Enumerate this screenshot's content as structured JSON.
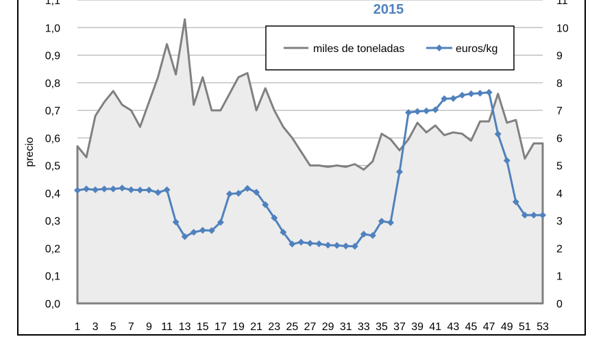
{
  "chart_data": {
    "type": "line",
    "title": "2015",
    "ylabel": "precio",
    "y2label": "",
    "xlabel": "",
    "ylim": [
      0,
      1.1
    ],
    "y2lim": [
      0,
      11
    ],
    "yticks": [
      "0,0",
      "0,1",
      "0,2",
      "0,3",
      "0,4",
      "0,5",
      "0,6",
      "0,7",
      "0,8",
      "0,9",
      "1,0",
      "1,1"
    ],
    "y2ticks": [
      "0",
      "1",
      "2",
      "3",
      "4",
      "5",
      "6",
      "7",
      "8",
      "9",
      "10",
      "11"
    ],
    "x": [
      1,
      2,
      3,
      4,
      5,
      6,
      7,
      8,
      9,
      10,
      11,
      12,
      13,
      14,
      15,
      16,
      17,
      18,
      19,
      20,
      21,
      22,
      23,
      24,
      25,
      26,
      27,
      28,
      29,
      30,
      31,
      32,
      33,
      34,
      35,
      36,
      37,
      38,
      39,
      40,
      41,
      42,
      43,
      44,
      45,
      46,
      47,
      48,
      49,
      50,
      51,
      52,
      53
    ],
    "xticks": [
      "1",
      "3",
      "5",
      "7",
      "9",
      "11",
      "13",
      "15",
      "17",
      "19",
      "21",
      "23",
      "25",
      "27",
      "29",
      "31",
      "33",
      "35",
      "37",
      "39",
      "41",
      "43",
      "45",
      "47",
      "49",
      "51",
      "53"
    ],
    "grid": "horizontal",
    "legend_position": "top-right",
    "series": [
      {
        "name": "miles de toneladas",
        "axis": "right",
        "style": "area",
        "color": "#808080",
        "fill": "#ececec",
        "values": [
          5.7,
          5.3,
          6.8,
          7.3,
          7.7,
          7.2,
          7.0,
          6.4,
          7.3,
          8.2,
          9.4,
          8.3,
          10.3,
          7.2,
          8.2,
          7.0,
          7.0,
          7.6,
          8.2,
          8.35,
          7.0,
          7.8,
          7.0,
          6.4,
          6.0,
          5.5,
          5.0,
          5.0,
          4.95,
          5.0,
          4.95,
          5.05,
          4.85,
          5.15,
          6.15,
          5.95,
          5.55,
          5.95,
          6.55,
          6.2,
          6.45,
          6.1,
          6.2,
          6.15,
          5.9,
          6.6,
          6.6,
          7.6,
          6.55,
          6.65,
          5.25,
          5.8,
          5.8
        ]
      },
      {
        "name": "euros/kg",
        "axis": "left",
        "style": "line-markers",
        "color": "#4f81bd",
        "values": [
          0.41,
          0.415,
          0.412,
          0.415,
          0.415,
          0.418,
          0.412,
          0.411,
          0.411,
          0.402,
          0.412,
          0.295,
          0.242,
          0.258,
          0.265,
          0.264,
          0.294,
          0.397,
          0.399,
          0.417,
          0.403,
          0.358,
          0.31,
          0.258,
          0.215,
          0.222,
          0.218,
          0.216,
          0.211,
          0.21,
          0.208,
          0.207,
          0.251,
          0.246,
          0.298,
          0.293,
          0.477,
          0.692,
          0.696,
          0.698,
          0.702,
          0.742,
          0.743,
          0.755,
          0.76,
          0.762,
          0.765,
          0.614,
          0.518,
          0.368,
          0.32,
          0.32,
          0.32
        ]
      }
    ]
  }
}
